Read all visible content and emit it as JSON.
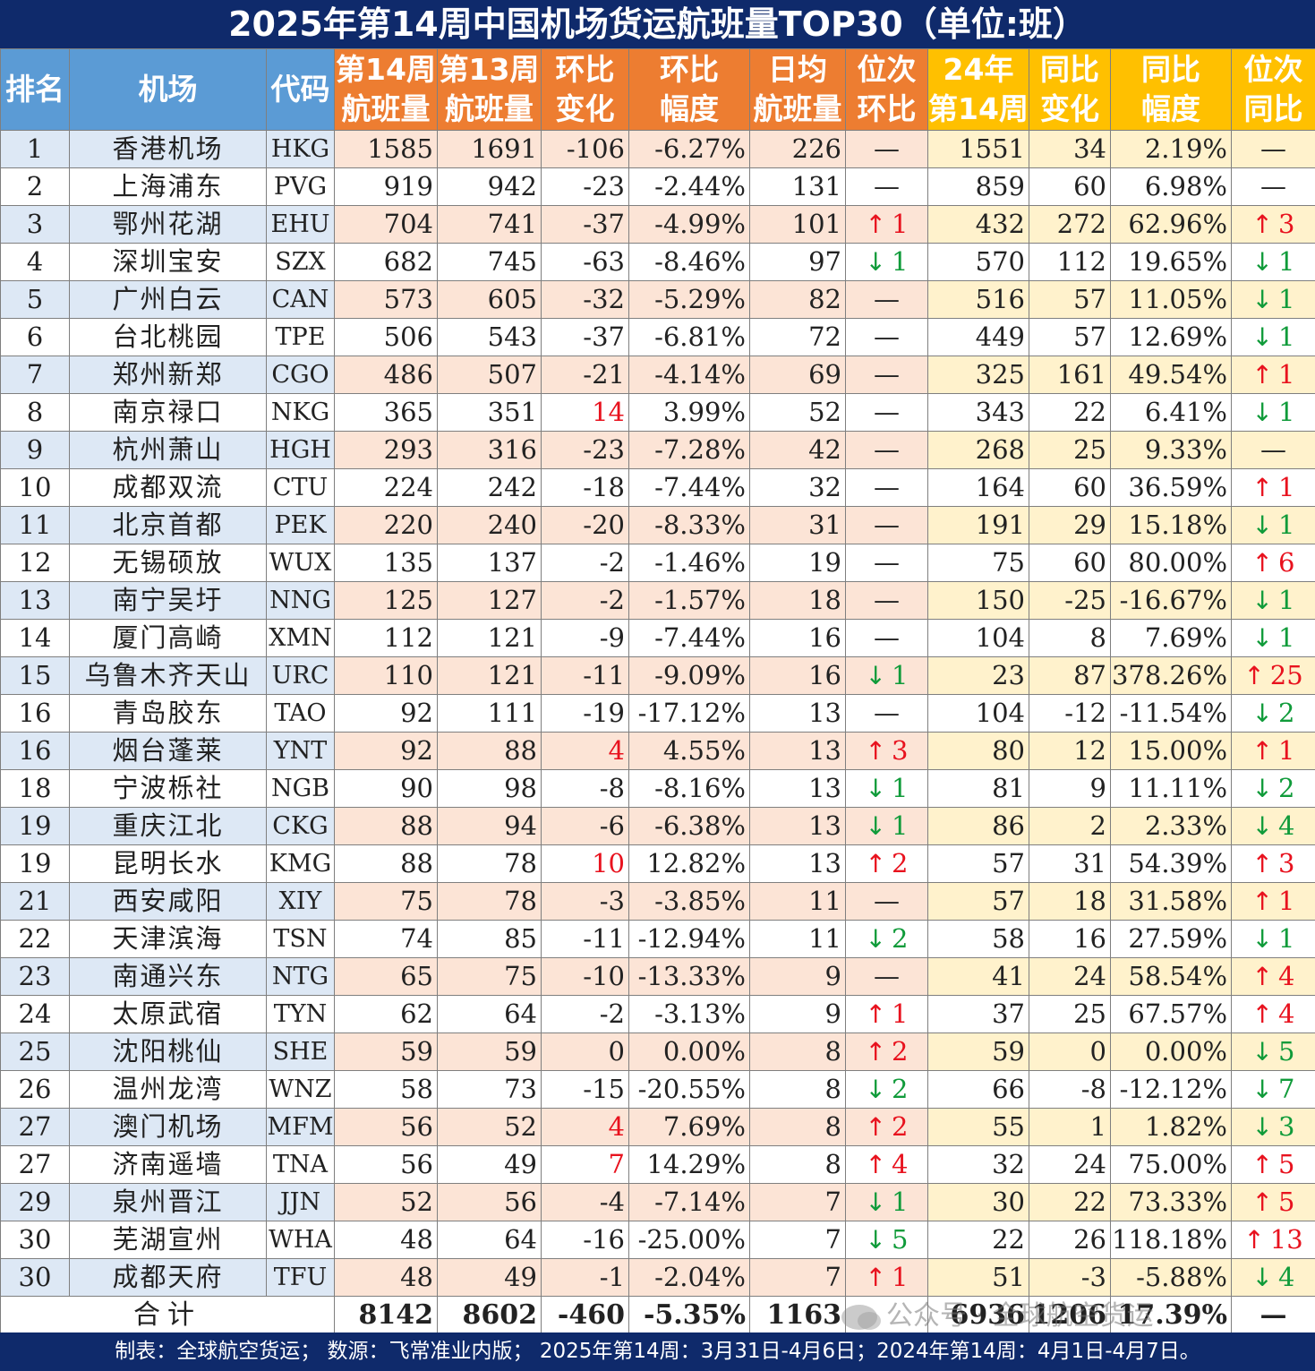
{
  "title": "2025年第14周中国机场货运航班量TOP30（单位:班）",
  "headers": [
    {
      "l1": "排名",
      "l2": ""
    },
    {
      "l1": "机场",
      "l2": ""
    },
    {
      "l1": "代码",
      "l2": ""
    },
    {
      "l1": "第14周",
      "l2": "航班量"
    },
    {
      "l1": "第13周",
      "l2": "航班量"
    },
    {
      "l1": "环比",
      "l2": "变化"
    },
    {
      "l1": "环比",
      "l2": "幅度"
    },
    {
      "l1": "日均",
      "l2": "航班量"
    },
    {
      "l1": "位次",
      "l2": "环比"
    },
    {
      "l1": "24年",
      "l2": "第14周"
    },
    {
      "l1": "同比",
      "l2": "变化"
    },
    {
      "l1": "同比",
      "l2": "幅度"
    },
    {
      "l1": "位次",
      "l2": "同比"
    }
  ],
  "rows": [
    [
      "1",
      "香港机场",
      "HKG",
      "1585",
      "1691",
      "-106",
      "-6.27%",
      "226",
      "—",
      "1551",
      "34",
      "2.19%",
      "—"
    ],
    [
      "2",
      "上海浦东",
      "PVG",
      "919",
      "942",
      "-23",
      "-2.44%",
      "131",
      "—",
      "859",
      "60",
      "6.98%",
      "—"
    ],
    [
      "3",
      "鄂州花湖",
      "EHU",
      "704",
      "741",
      "-37",
      "-4.99%",
      "101",
      "↑1",
      "432",
      "272",
      "62.96%",
      "↑3"
    ],
    [
      "4",
      "深圳宝安",
      "SZX",
      "682",
      "745",
      "-63",
      "-8.46%",
      "97",
      "↓1",
      "570",
      "112",
      "19.65%",
      "↓1"
    ],
    [
      "5",
      "广州白云",
      "CAN",
      "573",
      "605",
      "-32",
      "-5.29%",
      "82",
      "—",
      "516",
      "57",
      "11.05%",
      "↓1"
    ],
    [
      "6",
      "台北桃园",
      "TPE",
      "506",
      "543",
      "-37",
      "-6.81%",
      "72",
      "—",
      "449",
      "57",
      "12.69%",
      "↓1"
    ],
    [
      "7",
      "郑州新郑",
      "CGO",
      "486",
      "507",
      "-21",
      "-4.14%",
      "69",
      "—",
      "325",
      "161",
      "49.54%",
      "↑1"
    ],
    [
      "8",
      "南京禄口",
      "NKG",
      "365",
      "351",
      "14",
      "3.99%",
      "52",
      "—",
      "343",
      "22",
      "6.41%",
      "↓1"
    ],
    [
      "9",
      "杭州萧山",
      "HGH",
      "293",
      "316",
      "-23",
      "-7.28%",
      "42",
      "—",
      "268",
      "25",
      "9.33%",
      "—"
    ],
    [
      "10",
      "成都双流",
      "CTU",
      "224",
      "242",
      "-18",
      "-7.44%",
      "32",
      "—",
      "164",
      "60",
      "36.59%",
      "↑1"
    ],
    [
      "11",
      "北京首都",
      "PEK",
      "220",
      "240",
      "-20",
      "-8.33%",
      "31",
      "—",
      "191",
      "29",
      "15.18%",
      "↓1"
    ],
    [
      "12",
      "无锡硕放",
      "WUX",
      "135",
      "137",
      "-2",
      "-1.46%",
      "19",
      "—",
      "75",
      "60",
      "80.00%",
      "↑6"
    ],
    [
      "13",
      "南宁吴圩",
      "NNG",
      "125",
      "127",
      "-2",
      "-1.57%",
      "18",
      "—",
      "150",
      "-25",
      "-16.67%",
      "↓1"
    ],
    [
      "14",
      "厦门高崎",
      "XMN",
      "112",
      "121",
      "-9",
      "-7.44%",
      "16",
      "—",
      "104",
      "8",
      "7.69%",
      "↓1"
    ],
    [
      "15",
      "乌鲁木齐天山",
      "URC",
      "110",
      "121",
      "-11",
      "-9.09%",
      "16",
      "↓1",
      "23",
      "87",
      "378.26%",
      "↑25"
    ],
    [
      "16",
      "青岛胶东",
      "TAO",
      "92",
      "111",
      "-19",
      "-17.12%",
      "13",
      "—",
      "104",
      "-12",
      "-11.54%",
      "↓2"
    ],
    [
      "16",
      "烟台蓬莱",
      "YNT",
      "92",
      "88",
      "4",
      "4.55%",
      "13",
      "↑3",
      "80",
      "12",
      "15.00%",
      "↑1"
    ],
    [
      "18",
      "宁波栎社",
      "NGB",
      "90",
      "98",
      "-8",
      "-8.16%",
      "13",
      "↓1",
      "81",
      "9",
      "11.11%",
      "↓2"
    ],
    [
      "19",
      "重庆江北",
      "CKG",
      "88",
      "94",
      "-6",
      "-6.38%",
      "13",
      "↓1",
      "86",
      "2",
      "2.33%",
      "↓4"
    ],
    [
      "19",
      "昆明长水",
      "KMG",
      "88",
      "78",
      "10",
      "12.82%",
      "13",
      "↑2",
      "57",
      "31",
      "54.39%",
      "↑3"
    ],
    [
      "21",
      "西安咸阳",
      "XIY",
      "75",
      "78",
      "-3",
      "-3.85%",
      "11",
      "—",
      "57",
      "18",
      "31.58%",
      "↑1"
    ],
    [
      "22",
      "天津滨海",
      "TSN",
      "74",
      "85",
      "-11",
      "-12.94%",
      "11",
      "↓2",
      "58",
      "16",
      "27.59%",
      "↓1"
    ],
    [
      "23",
      "南通兴东",
      "NTG",
      "65",
      "75",
      "-10",
      "-13.33%",
      "9",
      "—",
      "41",
      "24",
      "58.54%",
      "↑4"
    ],
    [
      "24",
      "太原武宿",
      "TYN",
      "62",
      "64",
      "-2",
      "-3.13%",
      "9",
      "↑1",
      "37",
      "25",
      "67.57%",
      "↑4"
    ],
    [
      "25",
      "沈阳桃仙",
      "SHE",
      "59",
      "59",
      "0",
      "0.00%",
      "8",
      "↑2",
      "59",
      "0",
      "0.00%",
      "↓5"
    ],
    [
      "26",
      "温州龙湾",
      "WNZ",
      "58",
      "73",
      "-15",
      "-20.55%",
      "8",
      "↓2",
      "66",
      "-8",
      "-12.12%",
      "↓7"
    ],
    [
      "27",
      "澳门机场",
      "MFM",
      "56",
      "52",
      "4",
      "7.69%",
      "8",
      "↑2",
      "55",
      "1",
      "1.82%",
      "↓3"
    ],
    [
      "27",
      "济南遥墙",
      "TNA",
      "56",
      "49",
      "7",
      "14.29%",
      "8",
      "↑4",
      "32",
      "24",
      "75.00%",
      "↑5"
    ],
    [
      "29",
      "泉州晋江",
      "JJN",
      "52",
      "56",
      "-4",
      "-7.14%",
      "7",
      "↓1",
      "30",
      "22",
      "73.33%",
      "↑5"
    ],
    [
      "30",
      "芜湖宣州",
      "WHA",
      "48",
      "64",
      "-16",
      "-25.00%",
      "7",
      "↓5",
      "22",
      "26",
      "118.18%",
      "↑13"
    ],
    [
      "30",
      "成都天府",
      "TFU",
      "48",
      "49",
      "-1",
      "-2.04%",
      "7",
      "↑1",
      "51",
      "-3",
      "-5.88%",
      "↓4"
    ]
  ],
  "total": {
    "label": "合计",
    "values": [
      "8142",
      "8602",
      "-460",
      "-5.35%",
      "1163",
      "",
      "6936",
      "1206",
      "17.39%",
      "—"
    ]
  },
  "watermark": "公众号 · 全球航空货运",
  "footer": "制表：全球航空货运； 数源：飞常准业内版； 2025年第14周：3月31日-4月6日；2024年第14周：4月1日-4月7日。",
  "colors": {
    "title_bg": "#0f2a6b",
    "header_blue": "#5b9bd5",
    "header_orange": "#ed7d31",
    "header_gold": "#ffc000",
    "stripe_blue": "#dde8f5",
    "stripe_orange": "#fce4d6",
    "stripe_yellow": "#fff2cc",
    "up": "#e8121e",
    "down": "#109b3a"
  }
}
